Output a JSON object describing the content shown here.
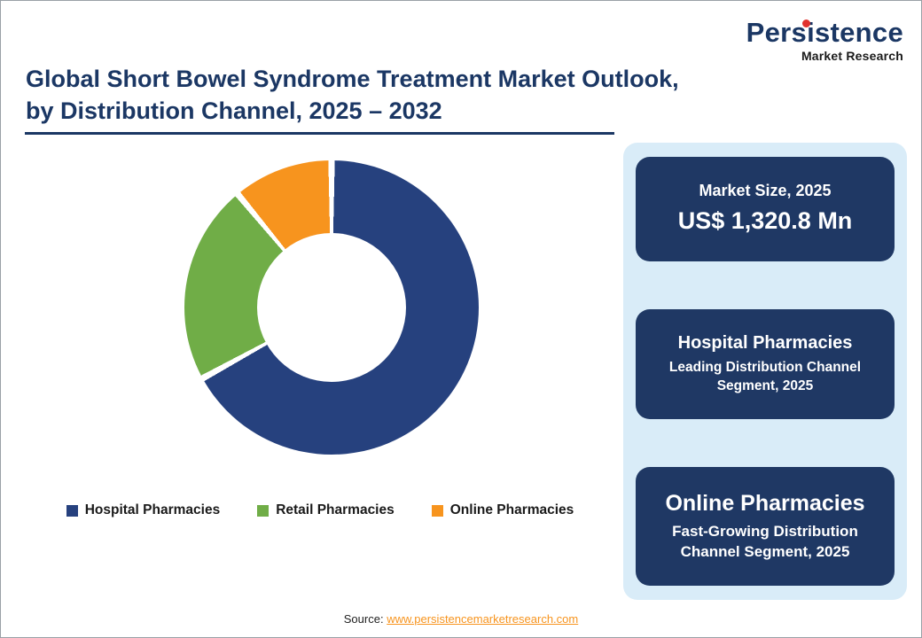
{
  "page": {
    "title_line1": "Global Short Bowel Syndrome Treatment Market Outlook,",
    "title_line2": "by Distribution Channel, 2025 – 2032"
  },
  "logo": {
    "name": "Persistence",
    "tagline": "Market Research"
  },
  "chart_data": {
    "type": "pie",
    "donut": true,
    "title": "Global Short Bowel Syndrome Treatment Market Outlook, by Distribution Channel, 2025 – 2032",
    "categories": [
      "Hospital Pharmacies",
      "Retail Pharmacies",
      "Online Pharmacies"
    ],
    "values": [
      67,
      22,
      11
    ],
    "colors": [
      "#26417E",
      "#70AD47",
      "#F7941E"
    ],
    "start_angle_deg": 0,
    "legend_position": "bottom"
  },
  "side_panel": {
    "cards": [
      {
        "line1": "Market Size, 2025",
        "line2": "US$ 1,320.8 Mn"
      },
      {
        "line1": "Hospital Pharmacies",
        "line2": "Leading Distribution Channel Segment, 2025"
      },
      {
        "line1": "Online Pharmacies",
        "line2": "Fast-Growing Distribution Channel Segment, 2025"
      }
    ]
  },
  "footer": {
    "source_label": "Source:",
    "source_link": "www.persistencemarketresearch.com"
  },
  "colors": {
    "title_navy": "#1B3764",
    "card_navy": "#1F3864",
    "panel_light_blue": "#D9ECF8",
    "donut_blue": "#26417E",
    "green": "#70AD47",
    "orange": "#F7941E",
    "logo_red": "#E0312E"
  }
}
